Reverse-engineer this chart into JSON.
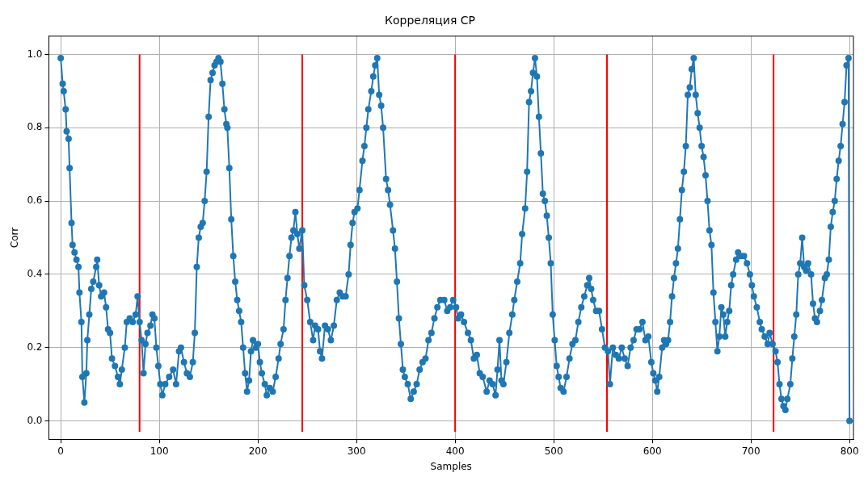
{
  "chart_data": {
    "type": "line",
    "title": "Корреляция CP",
    "xlabel": "Samples",
    "ylabel": "Corr",
    "xlim": [
      -12,
      804
    ],
    "ylim": [
      -0.05,
      1.05
    ],
    "xticks": [
      0,
      100,
      200,
      300,
      400,
      500,
      600,
      700,
      800
    ],
    "yticks": [
      {
        "value": 0,
        "label": "0.0"
      },
      {
        "value": 0.2,
        "label": "0.2"
      },
      {
        "value": 0.4,
        "label": "0.4"
      },
      {
        "value": 0.6,
        "label": "0.6"
      },
      {
        "value": 0.8,
        "label": "0.8"
      },
      {
        "value": 1,
        "label": "1.0"
      }
    ],
    "grid": true,
    "legend": false,
    "series": [
      {
        "color": "#1f77b4",
        "marker": "circle",
        "line_style": "solid",
        "x": [
          0,
          2,
          3,
          5,
          6,
          8,
          9,
          11,
          12,
          14,
          16,
          18,
          19,
          21,
          22,
          24,
          26,
          27,
          29,
          31,
          33,
          36,
          37,
          39,
          41,
          44,
          46,
          48,
          50,
          52,
          55,
          58,
          60,
          62,
          65,
          67,
          70,
          73,
          76,
          78,
          80,
          82,
          84,
          86,
          88,
          91,
          93,
          95,
          97,
          99,
          101,
          103,
          106,
          110,
          114,
          117,
          120,
          122,
          125,
          128,
          131,
          134,
          136,
          138,
          140,
          142,
          144,
          146,
          148,
          150,
          152,
          154,
          156,
          158,
          160,
          162,
          164,
          166,
          168,
          169,
          171,
          173,
          175,
          177,
          179,
          181,
          183,
          185,
          187,
          189,
          191,
          193,
          195,
          198,
          200,
          202,
          204,
          207,
          209,
          212,
          215,
          218,
          221,
          223,
          226,
          228,
          230,
          232,
          234,
          236,
          238,
          240,
          242,
          245,
          247,
          250,
          253,
          256,
          258,
          261,
          263,
          265,
          268,
          271,
          274,
          277,
          280,
          283,
          286,
          289,
          292,
          294,
          296,
          298,
          301,
          303,
          306,
          308,
          310,
          312,
          315,
          317,
          319,
          321,
          323,
          325,
          327,
          330,
          332,
          334,
          337,
          339,
          341,
          343,
          345,
          347,
          349,
          352,
          355,
          358,
          361,
          364,
          367,
          370,
          373,
          376,
          379,
          382,
          385,
          389,
          392,
          395,
          398,
          401,
          403,
          406,
          409,
          413,
          416,
          419,
          422,
          425,
          428,
          432,
          435,
          438,
          441,
          443,
          445,
          447,
          449,
          452,
          455,
          458,
          460,
          463,
          466,
          468,
          471,
          473,
          475,
          477,
          479,
          481,
          483,
          485,
          487,
          489,
          491,
          493,
          495,
          497,
          499,
          501,
          503,
          505,
          507,
          510,
          513,
          516,
          519,
          522,
          525,
          528,
          531,
          534,
          536,
          538,
          540,
          543,
          546,
          549,
          552,
          555,
          557,
          560,
          563,
          566,
          569,
          572,
          575,
          578,
          581,
          584,
          587,
          590,
          593,
          596,
          599,
          601,
          603,
          605,
          607,
          610,
          612,
          614,
          616,
          618,
          620,
          622,
          624,
          626,
          628,
          630,
          632,
          634,
          636,
          638,
          640,
          642,
          644,
          646,
          648,
          650,
          652,
          654,
          656,
          658,
          660,
          662,
          664,
          666,
          668,
          670,
          672,
          674,
          676,
          678,
          680,
          682,
          685,
          687,
          690,
          693,
          696,
          699,
          701,
          703,
          706,
          709,
          711,
          714,
          717,
          719,
          722,
          725,
          727,
          729,
          731,
          733,
          735,
          737,
          740,
          742,
          744,
          746,
          748,
          750,
          752,
          754,
          756,
          758,
          761,
          763,
          765,
          767,
          770,
          772,
          775,
          777,
          779,
          781,
          783,
          785,
          787,
          789,
          791,
          793,
          795,
          797,
          799,
          800
        ],
        "values": [
          0.99,
          0.92,
          0.9,
          0.85,
          0.79,
          0.77,
          0.69,
          0.54,
          0.48,
          0.46,
          0.44,
          0.42,
          0.35,
          0.27,
          0.12,
          0.05,
          0.13,
          0.22,
          0.29,
          0.36,
          0.38,
          0.42,
          0.44,
          0.37,
          0.34,
          0.35,
          0.31,
          0.25,
          0.24,
          0.17,
          0.15,
          0.12,
          0.1,
          0.14,
          0.2,
          0.27,
          0.28,
          0.27,
          0.29,
          0.34,
          0.27,
          0.22,
          0.13,
          0.21,
          0.24,
          0.26,
          0.29,
          0.28,
          0.2,
          0.15,
          0.1,
          0.07,
          0.1,
          0.12,
          0.14,
          0.1,
          0.19,
          0.2,
          0.16,
          0.13,
          0.12,
          0.16,
          0.24,
          0.42,
          0.5,
          0.53,
          0.54,
          0.6,
          0.68,
          0.83,
          0.93,
          0.95,
          0.97,
          0.98,
          0.99,
          0.98,
          0.92,
          0.85,
          0.81,
          0.8,
          0.69,
          0.55,
          0.45,
          0.38,
          0.33,
          0.3,
          0.27,
          0.2,
          0.13,
          0.08,
          0.11,
          0.19,
          0.22,
          0.2,
          0.21,
          0.16,
          0.13,
          0.1,
          0.07,
          0.09,
          0.08,
          0.12,
          0.17,
          0.21,
          0.25,
          0.33,
          0.39,
          0.45,
          0.5,
          0.52,
          0.57,
          0.51,
          0.47,
          0.52,
          0.37,
          0.33,
          0.27,
          0.22,
          0.26,
          0.25,
          0.19,
          0.17,
          0.26,
          0.25,
          0.22,
          0.26,
          0.33,
          0.35,
          0.34,
          0.34,
          0.4,
          0.48,
          0.54,
          0.57,
          0.58,
          0.63,
          0.71,
          0.75,
          0.8,
          0.85,
          0.9,
          0.94,
          0.97,
          0.99,
          0.89,
          0.86,
          0.8,
          0.66,
          0.63,
          0.59,
          0.52,
          0.47,
          0.38,
          0.28,
          0.21,
          0.14,
          0.12,
          0.1,
          0.06,
          0.08,
          0.1,
          0.14,
          0.16,
          0.17,
          0.22,
          0.24,
          0.28,
          0.31,
          0.33,
          0.33,
          0.3,
          0.31,
          0.33,
          0.31,
          0.28,
          0.29,
          0.27,
          0.24,
          0.22,
          0.17,
          0.18,
          0.13,
          0.12,
          0.08,
          0.11,
          0.1,
          0.07,
          0.14,
          0.22,
          0.11,
          0.1,
          0.16,
          0.24,
          0.29,
          0.33,
          0.38,
          0.43,
          0.51,
          0.58,
          0.68,
          0.87,
          0.9,
          0.95,
          0.99,
          0.94,
          0.83,
          0.73,
          0.62,
          0.6,
          0.56,
          0.5,
          0.43,
          0.29,
          0.22,
          0.15,
          0.12,
          0.09,
          0.08,
          0.12,
          0.17,
          0.21,
          0.22,
          0.27,
          0.31,
          0.34,
          0.37,
          0.39,
          0.36,
          0.33,
          0.3,
          0.3,
          0.25,
          0.2,
          0.19,
          0.1,
          0.2,
          0.18,
          0.17,
          0.2,
          0.17,
          0.15,
          0.2,
          0.22,
          0.25,
          0.25,
          0.27,
          0.22,
          0.23,
          0.16,
          0.13,
          0.11,
          0.08,
          0.12,
          0.2,
          0.22,
          0.21,
          0.22,
          0.27,
          0.34,
          0.39,
          0.43,
          0.47,
          0.55,
          0.63,
          0.68,
          0.75,
          0.89,
          0.91,
          0.96,
          0.99,
          0.89,
          0.84,
          0.8,
          0.75,
          0.72,
          0.67,
          0.6,
          0.52,
          0.48,
          0.35,
          0.27,
          0.19,
          0.23,
          0.31,
          0.29,
          0.23,
          0.27,
          0.3,
          0.37,
          0.4,
          0.44,
          0.46,
          0.45,
          0.45,
          0.43,
          0.4,
          0.37,
          0.34,
          0.31,
          0.27,
          0.25,
          0.23,
          0.21,
          0.24,
          0.21,
          0.19,
          0.16,
          0.1,
          0.06,
          0.04,
          0.03,
          0.06,
          0.1,
          0.17,
          0.23,
          0.29,
          0.4,
          0.43,
          0.5,
          0.42,
          0.41,
          0.43,
          0.4,
          0.32,
          0.28,
          0.27,
          0.3,
          0.33,
          0.39,
          0.4,
          0.44,
          0.53,
          0.57,
          0.6,
          0.66,
          0.71,
          0.75,
          0.81,
          0.87,
          0.97,
          0.99,
          0
        ]
      },
      {
        "color": "#ff0000",
        "marker": "none",
        "line_style": "solid",
        "x": [
          80,
          80
        ],
        "values": [
          -0.03,
          1.0
        ]
      },
      {
        "color": "#ff0000",
        "marker": "none",
        "line_style": "solid",
        "x": [
          245,
          245
        ],
        "values": [
          -0.03,
          1.0
        ]
      },
      {
        "color": "#ff0000",
        "marker": "none",
        "line_style": "solid",
        "x": [
          400,
          400
        ],
        "values": [
          -0.03,
          1.0
        ]
      },
      {
        "color": "#ff0000",
        "marker": "none",
        "line_style": "solid",
        "x": [
          554,
          554
        ],
        "values": [
          -0.03,
          1.0
        ]
      },
      {
        "color": "#ff0000",
        "marker": "none",
        "line_style": "solid",
        "x": [
          723,
          723
        ],
        "values": [
          -0.03,
          1.0
        ]
      }
    ]
  }
}
